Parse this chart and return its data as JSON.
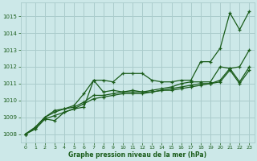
{
  "bg_color": "#cce8e8",
  "grid_color": "#aacccc",
  "line_color": "#1a5c1a",
  "xlabel": "Graphe pression niveau de la mer (hPa)",
  "xlim": [
    -0.5,
    23.5
  ],
  "ylim": [
    1007.5,
    1015.8
  ],
  "yticks": [
    1008,
    1009,
    1010,
    1011,
    1012,
    1013,
    1014,
    1015
  ],
  "xticks": [
    0,
    1,
    2,
    3,
    4,
    5,
    6,
    7,
    8,
    9,
    10,
    11,
    12,
    13,
    14,
    15,
    16,
    17,
    18,
    19,
    20,
    21,
    22,
    23
  ],
  "series": [
    [
      1008.0,
      1008.3,
      1008.9,
      1008.8,
      1009.3,
      1009.5,
      1009.6,
      1011.2,
      1011.2,
      1011.1,
      1011.6,
      1011.6,
      1011.6,
      1011.2,
      1011.1,
      1011.1,
      1011.2,
      1011.2,
      1012.3,
      1012.3,
      1013.1,
      1015.2,
      1014.2,
      1015.3
    ],
    [
      1008.0,
      1008.4,
      1009.0,
      1009.4,
      1009.5,
      1009.7,
      1010.4,
      1011.2,
      1010.5,
      1010.6,
      1010.5,
      1010.6,
      1010.5,
      1010.6,
      1010.7,
      1010.8,
      1011.0,
      1011.1,
      1011.1,
      1011.1,
      1012.0,
      1011.9,
      1012.0,
      1013.0
    ],
    [
      1008.0,
      1008.4,
      1009.0,
      1009.3,
      1009.5,
      1009.6,
      1009.9,
      1010.3,
      1010.3,
      1010.4,
      1010.5,
      1010.5,
      1010.5,
      1010.5,
      1010.6,
      1010.7,
      1010.8,
      1010.9,
      1011.0,
      1011.0,
      1011.2,
      1011.9,
      1011.1,
      1012.0
    ],
    [
      1008.0,
      1008.3,
      1008.9,
      1009.1,
      1009.3,
      1009.5,
      1009.8,
      1010.1,
      1010.2,
      1010.3,
      1010.4,
      1010.4,
      1010.4,
      1010.5,
      1010.6,
      1010.6,
      1010.7,
      1010.8,
      1010.9,
      1011.0,
      1011.1,
      1011.8,
      1011.0,
      1011.8
    ]
  ]
}
